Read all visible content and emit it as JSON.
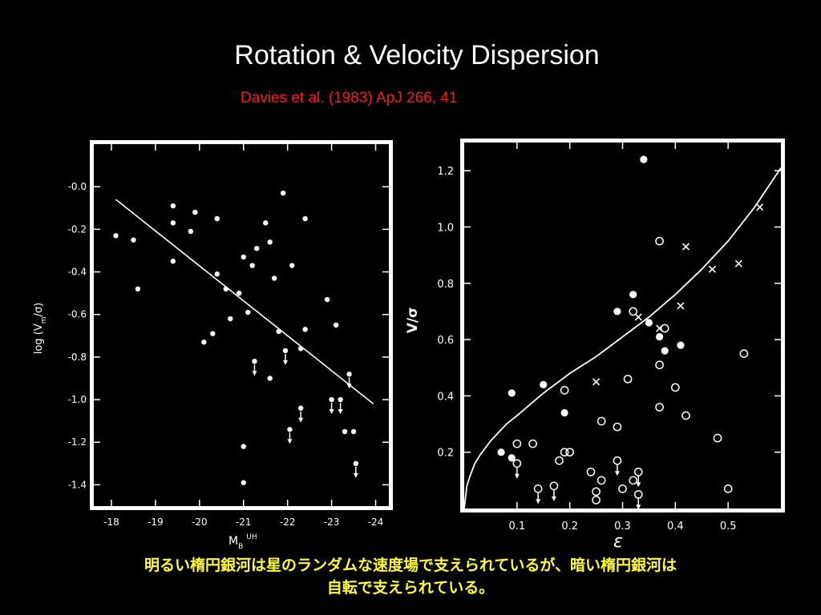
{
  "slide": {
    "title": "Rotation & Velocity Dispersion",
    "subtitle": "Davies et al. (1983) ApJ 266, 41",
    "caption_lines": [
      "明るい楕円銀河は星のランダムな速度場で支えられているが、暗い楕円銀河は",
      "自転で支えられている。"
    ]
  },
  "chart_data": [
    {
      "type": "scatter",
      "title": "",
      "xlabel_main": "M",
      "xlabel_sub": "B",
      "xlabel_sup": "UH",
      "ylabel": "log (V",
      "ylabel_sub": "m",
      "ylabel_tail": "/σ)",
      "xlim": [
        -17.6,
        -24.3
      ],
      "ylim": [
        -1.5,
        0.2
      ],
      "xticks": [
        -18,
        -19,
        -20,
        -21,
        -22,
        -23,
        -24
      ],
      "xtick_labels": [
        "-18",
        "-19",
        "-20",
        "-21",
        "-22",
        "-23",
        "-24"
      ],
      "yticks": [
        0,
        -0.2,
        -0.4,
        -0.6,
        -0.8,
        -1.0,
        -1.2,
        -1.4
      ],
      "ytick_labels": [
        "-0.0",
        "-0.2",
        "-0.4",
        "-0.6",
        "-0.8",
        "-1.0",
        "-1.2",
        "-1.4"
      ],
      "grid": false,
      "fit_line": {
        "x": [
          -18.1,
          -23.95
        ],
        "y": [
          -0.06,
          -1.02
        ]
      },
      "points": [
        {
          "x": -18.1,
          "y": -0.23
        },
        {
          "x": -18.5,
          "y": -0.25
        },
        {
          "x": -18.6,
          "y": -0.48
        },
        {
          "x": -19.4,
          "y": -0.09
        },
        {
          "x": -19.4,
          "y": -0.17
        },
        {
          "x": -19.4,
          "y": -0.35
        },
        {
          "x": -19.8,
          "y": -0.21
        },
        {
          "x": -19.9,
          "y": -0.12
        },
        {
          "x": -20.1,
          "y": -0.73
        },
        {
          "x": -20.3,
          "y": -0.69
        },
        {
          "x": -20.4,
          "y": -0.15
        },
        {
          "x": -20.4,
          "y": -0.41
        },
        {
          "x": -20.6,
          "y": -0.48
        },
        {
          "x": -20.7,
          "y": -0.62
        },
        {
          "x": -20.9,
          "y": -0.5
        },
        {
          "x": -21.0,
          "y": -0.33
        },
        {
          "x": -21.1,
          "y": -0.59
        },
        {
          "x": -21.2,
          "y": -0.37
        },
        {
          "x": -21.3,
          "y": -0.29
        },
        {
          "x": -21.5,
          "y": -0.17
        },
        {
          "x": -21.6,
          "y": -0.26
        },
        {
          "x": -21.6,
          "y": -0.9
        },
        {
          "x": -21.7,
          "y": -0.43
        },
        {
          "x": -21.8,
          "y": -0.68
        },
        {
          "x": -21.9,
          "y": -0.03
        },
        {
          "x": -22.1,
          "y": -0.37
        },
        {
          "x": -22.3,
          "y": -0.76
        },
        {
          "x": -22.4,
          "y": -0.15
        },
        {
          "x": -22.4,
          "y": -0.67
        },
        {
          "x": -22.9,
          "y": -0.53
        },
        {
          "x": -23.1,
          "y": -0.65
        },
        {
          "x": -23.3,
          "y": -1.15
        },
        {
          "x": -23.5,
          "y": -1.15
        },
        {
          "x": -21.0,
          "y": -1.22
        },
        {
          "x": -21.0,
          "y": -1.39
        }
      ],
      "upper_limits": [
        {
          "x": -21.25,
          "y": -0.82
        },
        {
          "x": -21.95,
          "y": -0.77
        },
        {
          "x": -22.05,
          "y": -1.14
        },
        {
          "x": -22.3,
          "y": -1.04
        },
        {
          "x": -23.0,
          "y": -1.0
        },
        {
          "x": -23.2,
          "y": -1.0
        },
        {
          "x": -23.4,
          "y": -0.88
        },
        {
          "x": -23.55,
          "y": -1.3
        }
      ]
    },
    {
      "type": "scatter",
      "title": "",
      "xlabel": "ε",
      "ylabel": "V/σ",
      "xlim": [
        0,
        0.6
      ],
      "ylim": [
        0,
        1.3
      ],
      "xticks": [
        0.1,
        0.2,
        0.3,
        0.4,
        0.5
      ],
      "xtick_labels": [
        "0.1",
        "0.2",
        "0.3",
        "0.4",
        "0.5"
      ],
      "yticks": [
        0.2,
        0.4,
        0.6,
        0.8,
        1.0,
        1.2
      ],
      "ytick_labels": [
        "0.2",
        "0.4",
        "0.6",
        "0.8",
        "1.0",
        "1.2"
      ],
      "grid": false,
      "curve": {
        "x": [
          0,
          0.005,
          0.01,
          0.02,
          0.03,
          0.05,
          0.08,
          0.1,
          0.15,
          0.2,
          0.25,
          0.3,
          0.35,
          0.4,
          0.45,
          0.5,
          0.55,
          0.6
        ],
        "y": [
          0,
          0.08,
          0.11,
          0.16,
          0.19,
          0.24,
          0.3,
          0.33,
          0.41,
          0.48,
          0.54,
          0.61,
          0.68,
          0.76,
          0.85,
          0.95,
          1.07,
          1.21
        ]
      },
      "filled_points": [
        {
          "x": 0.07,
          "y": 0.2
        },
        {
          "x": 0.09,
          "y": 0.18
        },
        {
          "x": 0.09,
          "y": 0.41
        },
        {
          "x": 0.15,
          "y": 0.44
        },
        {
          "x": 0.19,
          "y": 0.34
        },
        {
          "x": 0.29,
          "y": 0.7
        },
        {
          "x": 0.32,
          "y": 0.76
        },
        {
          "x": 0.34,
          "y": 1.24
        },
        {
          "x": 0.35,
          "y": 0.66
        },
        {
          "x": 0.37,
          "y": 0.61
        },
        {
          "x": 0.38,
          "y": 0.56
        },
        {
          "x": 0.41,
          "y": 0.58
        }
      ],
      "open_points": [
        {
          "x": 0.1,
          "y": 0.23
        },
        {
          "x": 0.13,
          "y": 0.23
        },
        {
          "x": 0.18,
          "y": 0.17
        },
        {
          "x": 0.19,
          "y": 0.2
        },
        {
          "x": 0.19,
          "y": 0.42
        },
        {
          "x": 0.2,
          "y": 0.2
        },
        {
          "x": 0.24,
          "y": 0.13
        },
        {
          "x": 0.25,
          "y": 0.06
        },
        {
          "x": 0.25,
          "y": 0.03
        },
        {
          "x": 0.26,
          "y": 0.31
        },
        {
          "x": 0.26,
          "y": 0.1
        },
        {
          "x": 0.29,
          "y": 0.29
        },
        {
          "x": 0.3,
          "y": 0.07
        },
        {
          "x": 0.31,
          "y": 0.46
        },
        {
          "x": 0.32,
          "y": 0.1
        },
        {
          "x": 0.32,
          "y": 0.7
        },
        {
          "x": 0.37,
          "y": 0.95
        },
        {
          "x": 0.37,
          "y": 0.51
        },
        {
          "x": 0.37,
          "y": 0.36
        },
        {
          "x": 0.38,
          "y": 0.64
        },
        {
          "x": 0.4,
          "y": 0.43
        },
        {
          "x": 0.42,
          "y": 0.33
        },
        {
          "x": 0.48,
          "y": 0.25
        },
        {
          "x": 0.5,
          "y": 0.07
        },
        {
          "x": 0.53,
          "y": 0.55
        }
      ],
      "open_upper_limits": [
        {
          "x": 0.1,
          "y": 0.16
        },
        {
          "x": 0.14,
          "y": 0.07
        },
        {
          "x": 0.17,
          "y": 0.08
        },
        {
          "x": 0.29,
          "y": 0.17
        },
        {
          "x": 0.33,
          "y": 0.13
        },
        {
          "x": 0.33,
          "y": 0.05
        }
      ],
      "cross_points": [
        {
          "x": 0.25,
          "y": 0.45
        },
        {
          "x": 0.33,
          "y": 0.68
        },
        {
          "x": 0.37,
          "y": 0.64
        },
        {
          "x": 0.41,
          "y": 0.72
        },
        {
          "x": 0.42,
          "y": 0.93
        },
        {
          "x": 0.47,
          "y": 0.85
        },
        {
          "x": 0.52,
          "y": 0.87
        },
        {
          "x": 0.56,
          "y": 1.07
        }
      ]
    }
  ]
}
